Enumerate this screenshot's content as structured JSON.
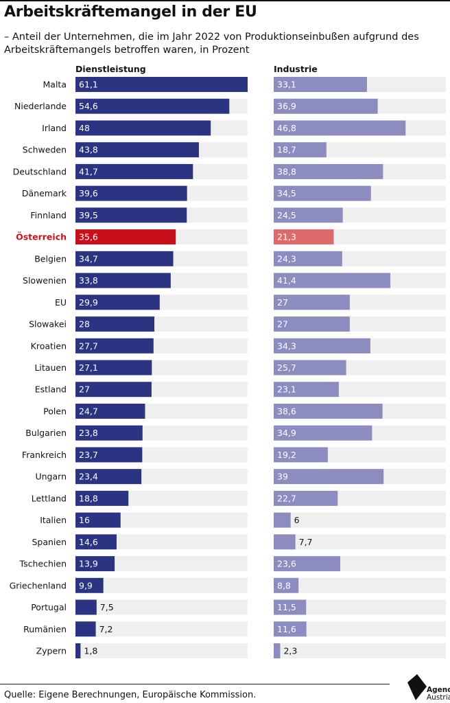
{
  "title": "Arbeitskräftemangel in der EU",
  "subtitle": "– Anteil der Unternehmen, die im Jahr 2022 von Produktionseinbußen aufgrund des Arbeitskräftemangels betroffen waren, in Prozent",
  "source": "Quelle: Eigene Berechnungen, Europäische Kommission.",
  "logo": {
    "line1": "Agenda",
    "line2": "Austria"
  },
  "colors": {
    "service": "#2b3483",
    "industry": "#8c8cc1",
    "highlight_service": "#c8101c",
    "highlight_industry": "#dd6a6d",
    "track": "#efefef"
  },
  "chart_data": {
    "type": "bar",
    "orientation": "horizontal",
    "categories": [
      "Malta",
      "Niederlande",
      "Irland",
      "Schweden",
      "Deutschland",
      "Dänemark",
      "Finnland",
      "Österreich",
      "Belgien",
      "Slowenien",
      "EU",
      "Slowakei",
      "Kroatien",
      "Litauen",
      "Estland",
      "Polen",
      "Bulgarien",
      "Frankreich",
      "Ungarn",
      "Lettland",
      "Italien",
      "Spanien",
      "Tschechien",
      "Griechenland",
      "Portugal",
      "Rumänien",
      "Zypern"
    ],
    "highlight": "Österreich",
    "series": [
      {
        "name": "Dienstleistung",
        "values": [
          61.1,
          54.6,
          48,
          43.8,
          41.7,
          39.6,
          39.5,
          35.6,
          34.7,
          33.8,
          29.9,
          28,
          27.7,
          27.1,
          27,
          24.7,
          23.8,
          23.7,
          23.4,
          18.8,
          16,
          14.6,
          13.9,
          9.9,
          7.5,
          7.2,
          1.8
        ]
      },
      {
        "name": "Industrie",
        "values": [
          33.1,
          36.9,
          46.8,
          18.7,
          38.8,
          34.5,
          24.5,
          21.3,
          24.3,
          41.4,
          27,
          27,
          34.3,
          25.7,
          23.1,
          38.6,
          34.9,
          19.2,
          39,
          22.7,
          6,
          7.7,
          23.6,
          8.8,
          11.5,
          11.6,
          2.3
        ]
      }
    ],
    "labels": {
      "Dienstleistung": [
        "61,1",
        "54,6",
        "48",
        "43,8",
        "41,7",
        "39,6",
        "39,5",
        "35,6",
        "34,7",
        "33,8",
        "29,9",
        "28",
        "27,7",
        "27,1",
        "27",
        "24,7",
        "23,8",
        "23,7",
        "23,4",
        "18,8",
        "16",
        "14,6",
        "13,9",
        "9,9",
        "7,5",
        "7,2",
        "1,8"
      ],
      "Industrie": [
        "33,1",
        "36,9",
        "46,8",
        "18,7",
        "38,8",
        "34,5",
        "24,5",
        "21,3",
        "24,3",
        "41,4",
        "27",
        "27",
        "34,3",
        "25,7",
        "23,1",
        "38,6",
        "34,9",
        "19,2",
        "39",
        "22,7",
        "6",
        "7,7",
        "23,6",
        "8,8",
        "11,5",
        "11,6",
        "2,3"
      ]
    },
    "xlim": [
      0,
      61.1
    ],
    "grid": false,
    "legend": "none"
  }
}
